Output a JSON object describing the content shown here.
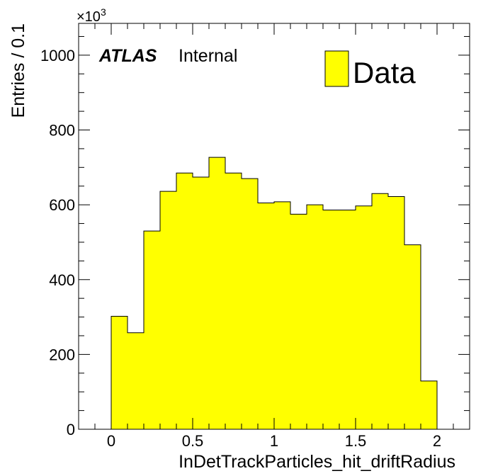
{
  "chart_data": {
    "type": "bar",
    "bins": [
      {
        "low": 0.0,
        "high": 0.1,
        "value": 302
      },
      {
        "low": 0.1,
        "high": 0.2,
        "value": 258
      },
      {
        "low": 0.2,
        "high": 0.3,
        "value": 530
      },
      {
        "low": 0.3,
        "high": 0.4,
        "value": 636
      },
      {
        "low": 0.4,
        "high": 0.5,
        "value": 685
      },
      {
        "low": 0.5,
        "high": 0.6,
        "value": 674
      },
      {
        "low": 0.6,
        "high": 0.7,
        "value": 727
      },
      {
        "low": 0.7,
        "high": 0.8,
        "value": 685
      },
      {
        "low": 0.8,
        "high": 0.9,
        "value": 670
      },
      {
        "low": 0.9,
        "high": 1.0,
        "value": 605
      },
      {
        "low": 1.0,
        "high": 1.1,
        "value": 608
      },
      {
        "low": 1.1,
        "high": 1.2,
        "value": 575
      },
      {
        "low": 1.2,
        "high": 1.3,
        "value": 600
      },
      {
        "low": 1.3,
        "high": 1.4,
        "value": 586
      },
      {
        "low": 1.4,
        "high": 1.5,
        "value": 586
      },
      {
        "low": 1.5,
        "high": 1.6,
        "value": 597
      },
      {
        "low": 1.6,
        "high": 1.7,
        "value": 630
      },
      {
        "low": 1.7,
        "high": 1.8,
        "value": 622
      },
      {
        "low": 1.8,
        "high": 1.9,
        "value": 493
      },
      {
        "low": 1.9,
        "high": 2.0,
        "value": 129
      }
    ],
    "xlim": [
      -0.2,
      2.2
    ],
    "ylim": [
      0,
      1085
    ],
    "xticks": [
      0,
      0.5,
      1,
      1.5,
      2
    ],
    "xtick_labels": [
      "0",
      "0.5",
      "1",
      "1.5",
      "2"
    ],
    "yticks": [
      0,
      200,
      400,
      600,
      800,
      1000
    ],
    "ytick_labels": [
      "0",
      "200",
      "400",
      "600",
      "800",
      "1000"
    ],
    "xlabel": "InDetTrackParticles_hit_driftRadius",
    "ylabel": "Entries / 0.1",
    "y_multiplier": "×10",
    "y_multiplier_exp": "3",
    "atlas_label": "ATLAS",
    "atlas_status": "Internal",
    "legend": [
      {
        "name": "Data",
        "color": "#ffff00"
      }
    ],
    "legend_position": "top-right",
    "fill_color": "#ffff00",
    "grid": false
  }
}
